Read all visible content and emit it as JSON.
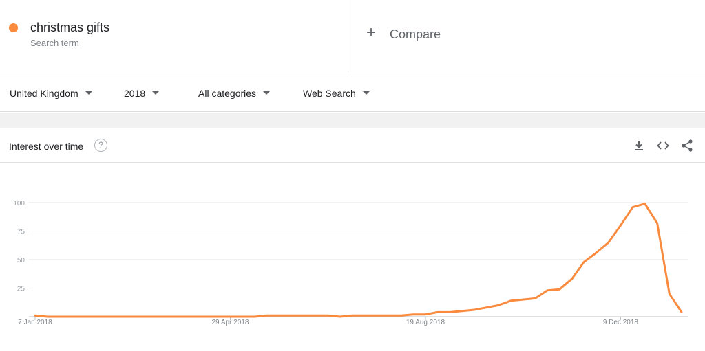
{
  "search_term": {
    "name": "christmas gifts",
    "subtitle": "Search term",
    "color": "#f98a3e"
  },
  "compare": {
    "label": "Compare"
  },
  "filters": {
    "region": "United Kingdom",
    "period": "2018",
    "category": "All categories",
    "search_type": "Web Search"
  },
  "card": {
    "title": "Interest over time",
    "help_symbol": "?",
    "tools": [
      "download-icon",
      "embed-code-icon",
      "share-icon"
    ]
  },
  "chart_data": {
    "type": "line",
    "title": "",
    "xlabel": "",
    "ylabel": "",
    "ylim": [
      0,
      100
    ],
    "y_ticks": [
      100,
      75,
      50,
      25
    ],
    "grid": true,
    "x_tick_labels": [
      "7 Jan 2018",
      "29 Apr 2018",
      "19 Aug 2018",
      "9 Dec 2018"
    ],
    "x_tick_weeks": [
      0,
      16,
      32,
      48
    ],
    "series": [
      {
        "name": "christmas gifts",
        "color": "#f98a3e",
        "values": [
          1,
          0,
          0,
          0,
          0,
          0,
          0,
          0,
          0,
          0,
          0,
          0,
          0,
          0,
          0,
          0,
          0,
          0,
          0,
          1,
          1,
          1,
          1,
          1,
          1,
          0,
          1,
          1,
          1,
          1,
          1,
          2,
          2,
          4,
          4,
          5,
          6,
          8,
          10,
          14,
          15,
          16,
          23,
          24,
          33,
          48,
          56,
          65,
          80,
          96,
          99,
          82,
          20,
          4
        ]
      }
    ]
  }
}
